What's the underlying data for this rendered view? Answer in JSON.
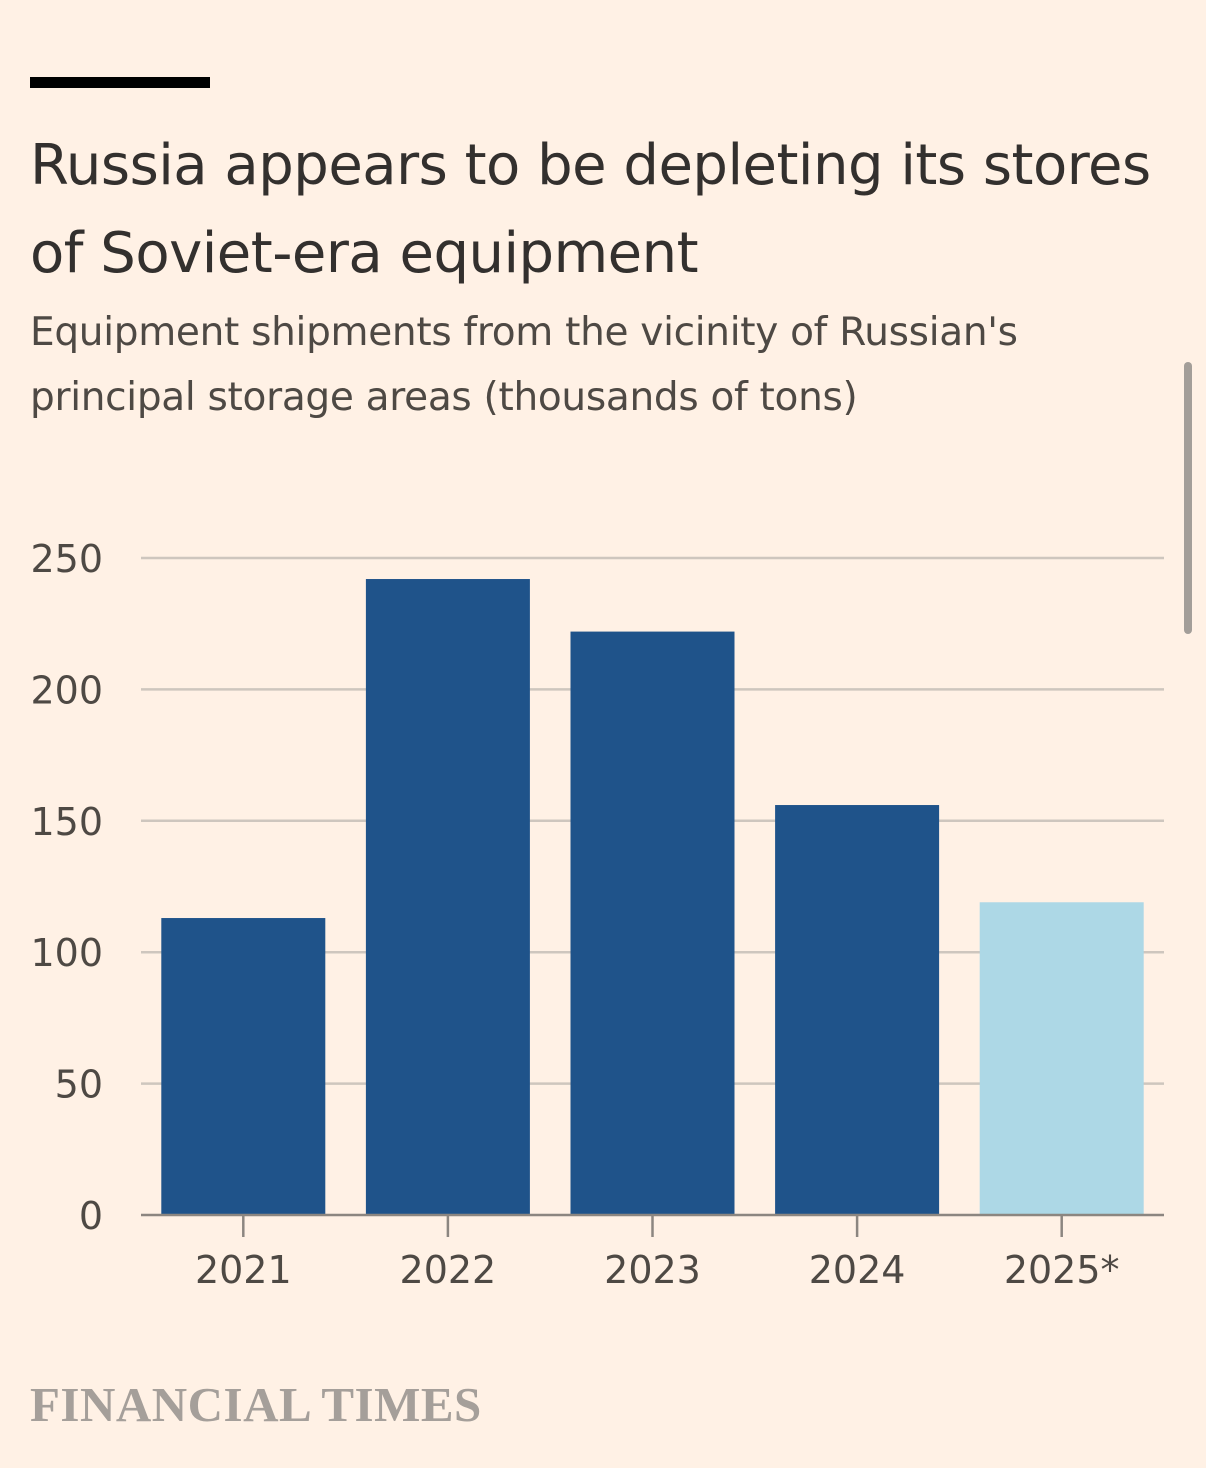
{
  "header": {
    "title": "Russia appears to be depleting its stores of Soviet-era equipment",
    "subtitle": "Equipment shipments from the vicinity of Russian's principal storage areas (thousands of tons)"
  },
  "footer": {
    "brand": "FINANCIAL TIMES"
  },
  "colors": {
    "background": "#FFF1E5",
    "bar_actual": "#1F538A",
    "bar_estimate": "#ADD8E6",
    "grid": "#CEC6BE",
    "axis": "#8C8680"
  },
  "chart_data": {
    "type": "bar",
    "title": "Russia appears to be depleting its stores of Soviet-era equipment",
    "subtitle": "Equipment shipments from the vicinity of Russian's principal storage areas (thousands of tons)",
    "categories": [
      "2021",
      "2022",
      "2023",
      "2024",
      "2025*"
    ],
    "values": [
      113,
      242,
      222,
      156,
      119
    ],
    "highlight": [
      false,
      false,
      false,
      false,
      true
    ],
    "xlabel": "",
    "ylabel": "",
    "ylim": [
      0,
      250
    ],
    "yticks": [
      0,
      50,
      100,
      150,
      200,
      250
    ],
    "grid": true,
    "legend": "none"
  }
}
